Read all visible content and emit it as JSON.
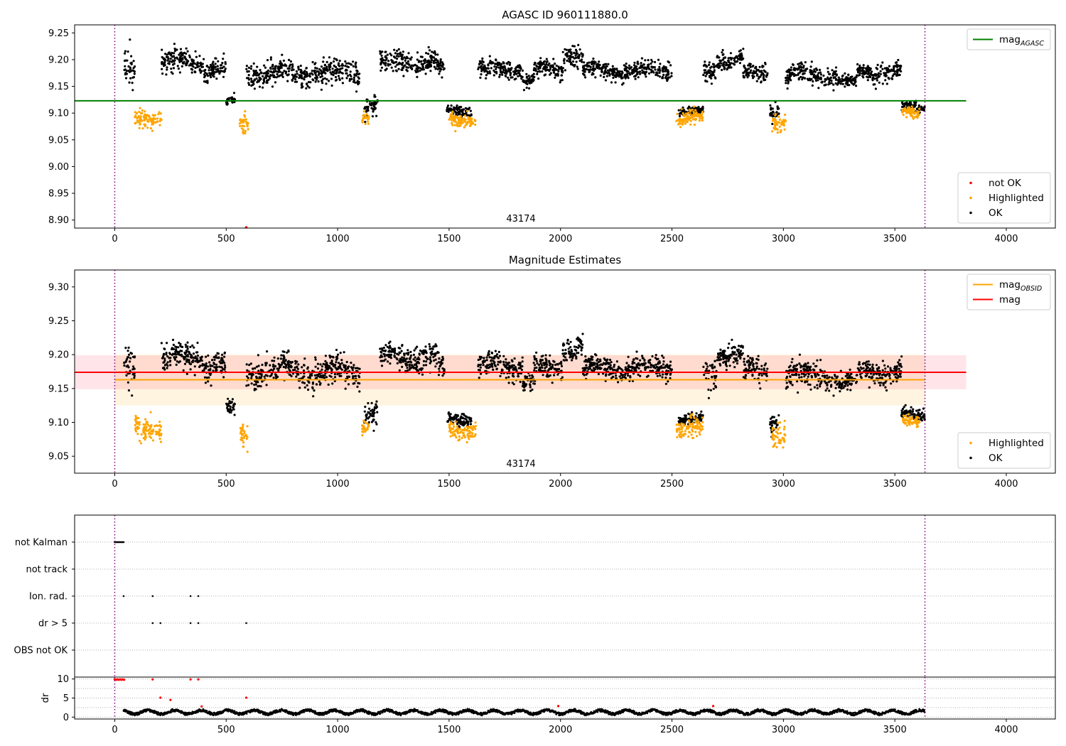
{
  "chart_data": [
    {
      "id": "p1",
      "type": "scatter",
      "title": "AGASC ID 960111880.0",
      "annotation": "43174",
      "xlim": [
        -180,
        4220
      ],
      "ylim": [
        8.885,
        9.265
      ],
      "xticks": [
        0,
        500,
        1000,
        1500,
        2000,
        2500,
        3000,
        3500,
        4000
      ],
      "yticks": [
        8.9,
        8.95,
        9.0,
        9.05,
        9.1,
        9.15,
        9.2,
        9.25
      ],
      "ytick_decimals": 2,
      "vlines": [
        0,
        3635
      ],
      "hlines": [
        {
          "name": "mag_AGASC",
          "y": 9.123,
          "x0": -180,
          "x1": 3820,
          "color": "#008000"
        }
      ],
      "legends": [
        {
          "position": "top-right",
          "entries": [
            {
              "label": "mag",
              "sub": "AGASC",
              "kind": "line",
              "color": "#008000"
            }
          ]
        },
        {
          "position": "bottom-right",
          "entries": [
            {
              "label": "not OK",
              "kind": "dot",
              "color": "#ff0000"
            },
            {
              "label": "Highlighted",
              "kind": "dot",
              "color": "#ffa500"
            },
            {
              "label": "OK",
              "kind": "dot",
              "color": "#000000"
            }
          ]
        }
      ],
      "series": [
        {
          "name": "OK",
          "color": "#000000",
          "segments": [
            [
              40,
              90,
              9.17,
              0.02
            ],
            [
              210,
              400,
              9.195,
              0.012
            ],
            [
              400,
              500,
              9.183,
              0.012
            ],
            [
              500,
              540,
              9.12,
              0.006
            ],
            [
              590,
              1100,
              9.175,
              0.013
            ],
            [
              1120,
              1180,
              9.115,
              0.012
            ],
            [
              1190,
              1450,
              9.195,
              0.012
            ],
            [
              1450,
              1480,
              9.18,
              0.01
            ],
            [
              1490,
              1600,
              9.105,
              0.006
            ],
            [
              1630,
              1830,
              9.183,
              0.01
            ],
            [
              1830,
              1880,
              9.16,
              0.008
            ],
            [
              1880,
              2010,
              9.18,
              0.01
            ],
            [
              2010,
              2100,
              9.21,
              0.012
            ],
            [
              2100,
              2500,
              9.18,
              0.01
            ],
            [
              2530,
              2640,
              9.103,
              0.005
            ],
            [
              2640,
              2700,
              9.17,
              0.015
            ],
            [
              2700,
              2820,
              9.2,
              0.01
            ],
            [
              2820,
              2930,
              9.175,
              0.01
            ],
            [
              2940,
              2980,
              9.105,
              0.01
            ],
            [
              3010,
              3240,
              9.17,
              0.012
            ],
            [
              3240,
              3330,
              9.158,
              0.008
            ],
            [
              3330,
              3530,
              9.175,
              0.01
            ],
            [
              3530,
              3635,
              9.11,
              0.006
            ]
          ]
        },
        {
          "name": "Highlighted",
          "color": "#ffa500",
          "segments": [
            [
              90,
              210,
              9.092,
              0.01
            ],
            [
              560,
              600,
              9.08,
              0.012
            ],
            [
              1110,
              1140,
              9.095,
              0.006
            ],
            [
              1500,
              1620,
              9.09,
              0.008
            ],
            [
              2520,
              2640,
              9.09,
              0.009
            ],
            [
              2950,
              3010,
              9.085,
              0.012
            ],
            [
              3530,
              3610,
              9.1,
              0.005
            ]
          ]
        },
        {
          "name": "not OK",
          "color": "#ff0000",
          "points": [
            [
              590,
              8.884
            ]
          ]
        }
      ]
    },
    {
      "id": "p2",
      "type": "scatter",
      "title": "Magnitude Estimates",
      "annotation": "43174",
      "xlim": [
        -180,
        4220
      ],
      "ylim": [
        9.025,
        9.325
      ],
      "xticks": [
        0,
        500,
        1000,
        1500,
        2000,
        2500,
        3000,
        3500,
        4000
      ],
      "yticks": [
        9.05,
        9.1,
        9.15,
        9.2,
        9.25,
        9.3
      ],
      "ytick_decimals": 2,
      "vlines": [
        0,
        3635
      ],
      "bands": [
        {
          "y0": 9.125,
          "y1": 9.2,
          "x0": 0,
          "x1": 3635,
          "color": "#ffa500",
          "opacity": 0.12
        },
        {
          "y0": 9.149,
          "y1": 9.199,
          "x0": -180,
          "x1": 3820,
          "color": "#ff4d6a",
          "opacity": 0.15
        }
      ],
      "hlines": [
        {
          "name": "mag_OBSID",
          "y": 9.163,
          "x0": 0,
          "x1": 3635,
          "color": "#ffa500"
        },
        {
          "name": "mag",
          "y": 9.174,
          "x0": -180,
          "x1": 3820,
          "color": "#ff0000"
        }
      ],
      "legends": [
        {
          "position": "top-right",
          "entries": [
            {
              "label": "mag",
              "sub": "OBSID",
              "kind": "line",
              "color": "#ffa500"
            },
            {
              "label": "mag",
              "kind": "line",
              "color": "#ff0000"
            }
          ]
        },
        {
          "position": "bottom-right",
          "entries": [
            {
              "label": "Highlighted",
              "kind": "dot",
              "color": "#ffa500"
            },
            {
              "label": "OK",
              "kind": "dot",
              "color": "#000000"
            }
          ]
        }
      ],
      "series": [
        {
          "name": "OK",
          "color": "#000000",
          "segments": [
            [
              40,
              90,
              9.17,
              0.02
            ],
            [
              210,
              400,
              9.195,
              0.012
            ],
            [
              400,
              500,
              9.183,
              0.012
            ],
            [
              500,
              540,
              9.12,
              0.006
            ],
            [
              590,
              1100,
              9.175,
              0.013
            ],
            [
              1120,
              1180,
              9.115,
              0.012
            ],
            [
              1190,
              1450,
              9.195,
              0.012
            ],
            [
              1450,
              1480,
              9.18,
              0.01
            ],
            [
              1490,
              1600,
              9.105,
              0.006
            ],
            [
              1630,
              1830,
              9.183,
              0.01
            ],
            [
              1830,
              1880,
              9.16,
              0.008
            ],
            [
              1880,
              2010,
              9.18,
              0.01
            ],
            [
              2010,
              2100,
              9.21,
              0.012
            ],
            [
              2100,
              2500,
              9.18,
              0.01
            ],
            [
              2530,
              2640,
              9.103,
              0.005
            ],
            [
              2640,
              2700,
              9.17,
              0.015
            ],
            [
              2700,
              2820,
              9.2,
              0.01
            ],
            [
              2820,
              2930,
              9.175,
              0.01
            ],
            [
              2940,
              2980,
              9.105,
              0.01
            ],
            [
              3010,
              3240,
              9.17,
              0.012
            ],
            [
              3240,
              3330,
              9.158,
              0.008
            ],
            [
              3330,
              3530,
              9.175,
              0.01
            ],
            [
              3530,
              3635,
              9.11,
              0.006
            ]
          ]
        },
        {
          "name": "Highlighted",
          "color": "#ffa500",
          "segments": [
            [
              90,
              210,
              9.092,
              0.01
            ],
            [
              560,
              600,
              9.08,
              0.012
            ],
            [
              1110,
              1140,
              9.095,
              0.006
            ],
            [
              1500,
              1620,
              9.09,
              0.008
            ],
            [
              2520,
              2640,
              9.09,
              0.009
            ],
            [
              2950,
              3010,
              9.085,
              0.012
            ],
            [
              3530,
              3610,
              9.1,
              0.005
            ]
          ]
        }
      ]
    },
    {
      "id": "p3",
      "type": "scatter",
      "xlim": [
        -180,
        4220
      ],
      "categories": [
        "not Kalman",
        "not track",
        "Ion. rad.",
        "dr > 5",
        "OBS not OK"
      ],
      "vlines": [
        0,
        3635
      ],
      "grid": true,
      "flags": [
        {
          "category": "not Kalman",
          "x": [
            0,
            4,
            8,
            12,
            16,
            20,
            24,
            28,
            32,
            36,
            40
          ]
        },
        {
          "category": "Ion. rad.",
          "x": [
            40,
            170,
            340,
            375
          ]
        },
        {
          "category": "dr > 5",
          "x": [
            170,
            205,
            340,
            375,
            590
          ]
        }
      ]
    },
    {
      "id": "p4",
      "type": "scatter",
      "ylabel": "dr",
      "xlim": [
        -180,
        4220
      ],
      "ylim": [
        -0.5,
        10.5
      ],
      "xticks": [
        0,
        500,
        1000,
        1500,
        2000,
        2500,
        3000,
        3500,
        4000
      ],
      "yticks": [
        0,
        5,
        10
      ],
      "ytick_decimals": 0,
      "vlines": [
        0,
        3635
      ],
      "grid": true,
      "series": [
        {
          "name": "OK",
          "color": "#000000",
          "x_range": [
            40,
            3635
          ],
          "y_center": 1.3,
          "y_spread": 0.7
        },
        {
          "name": "not OK",
          "color": "#ff0000",
          "points": [
            [
              0,
              9.9
            ],
            [
              6,
              9.8
            ],
            [
              12,
              9.9
            ],
            [
              18,
              9.8
            ],
            [
              24,
              9.9
            ],
            [
              30,
              9.8
            ],
            [
              36,
              9.9
            ],
            [
              42,
              9.8
            ],
            [
              170,
              9.9
            ],
            [
              205,
              5.1
            ],
            [
              340,
              9.9
            ],
            [
              375,
              9.9
            ],
            [
              590,
              5.1
            ],
            [
              250,
              4.5
            ],
            [
              390,
              2.8
            ],
            [
              1990,
              2.9
            ],
            [
              2685,
              2.9
            ]
          ]
        }
      ]
    }
  ]
}
